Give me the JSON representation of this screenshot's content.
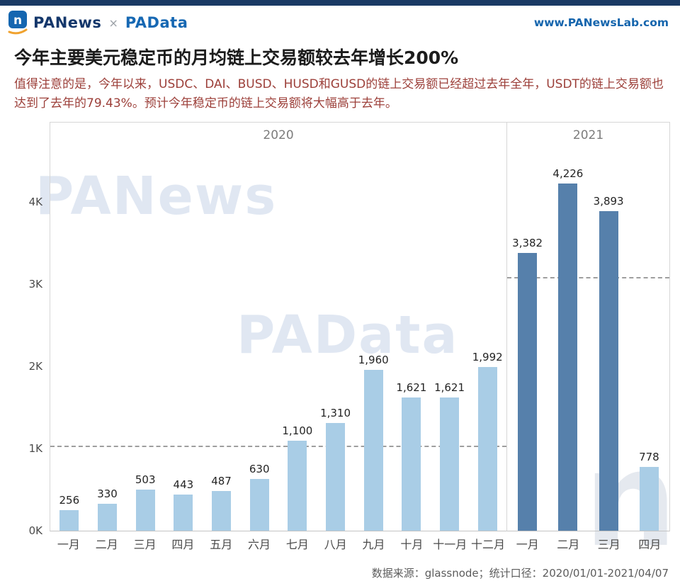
{
  "header": {
    "brand_left": "PANews",
    "brand_sep": "×",
    "brand_right": "PAData",
    "website": "www.PANewsLab.com"
  },
  "title": "今年主要美元稳定币的月均链上交易额较去年增长200%",
  "subtitle": "值得注意的是，今年以来，USDC、DAI、BUSD、HUSD和GUSD的链上交易额已经超过去年全年，USDT的链上交易额也达到了去年的79.43%。预计今年稳定币的链上交易额将大幅高于去年。",
  "watermarks": [
    "PANews",
    "PAData",
    "n"
  ],
  "footer": "数据来源：glassnode；统计口径：2020/01/01-2021/04/07",
  "chart_data": {
    "type": "bar",
    "yticks": [
      {
        "label": "0K",
        "value": 0
      },
      {
        "label": "1K",
        "value": 1000
      },
      {
        "label": "2K",
        "value": 2000
      },
      {
        "label": "3K",
        "value": 3000
      },
      {
        "label": "4K",
        "value": 4000
      }
    ],
    "ylim": [
      0,
      4650
    ],
    "grid": "off",
    "colors": {
      "light": "#a9cde6",
      "dark": "#5680ab",
      "avg_line": "#9e9e9e"
    },
    "sections": [
      {
        "label": "2020",
        "avg_line": 1021,
        "bars": [
          {
            "month": "一月",
            "value": 256,
            "color": "light"
          },
          {
            "month": "二月",
            "value": 330,
            "color": "light"
          },
          {
            "month": "三月",
            "value": 503,
            "color": "light"
          },
          {
            "month": "四月",
            "value": 443,
            "color": "light"
          },
          {
            "month": "五月",
            "value": 487,
            "color": "light"
          },
          {
            "month": "六月",
            "value": 630,
            "color": "light"
          },
          {
            "month": "七月",
            "value": 1100,
            "color": "light"
          },
          {
            "month": "八月",
            "value": 1310,
            "color": "light"
          },
          {
            "month": "九月",
            "value": 1960,
            "color": "light"
          },
          {
            "month": "十月",
            "value": 1621,
            "color": "light"
          },
          {
            "month": "十一月",
            "value": 1621,
            "color": "light"
          },
          {
            "month": "十二月",
            "value": 1992,
            "color": "light"
          }
        ]
      },
      {
        "label": "2021",
        "avg_line": 3070,
        "bars": [
          {
            "month": "一月",
            "value": 3382,
            "color": "dark"
          },
          {
            "month": "二月",
            "value": 4226,
            "color": "dark"
          },
          {
            "month": "三月",
            "value": 3893,
            "color": "dark"
          },
          {
            "month": "四月",
            "value": 778,
            "color": "light"
          }
        ]
      }
    ]
  }
}
